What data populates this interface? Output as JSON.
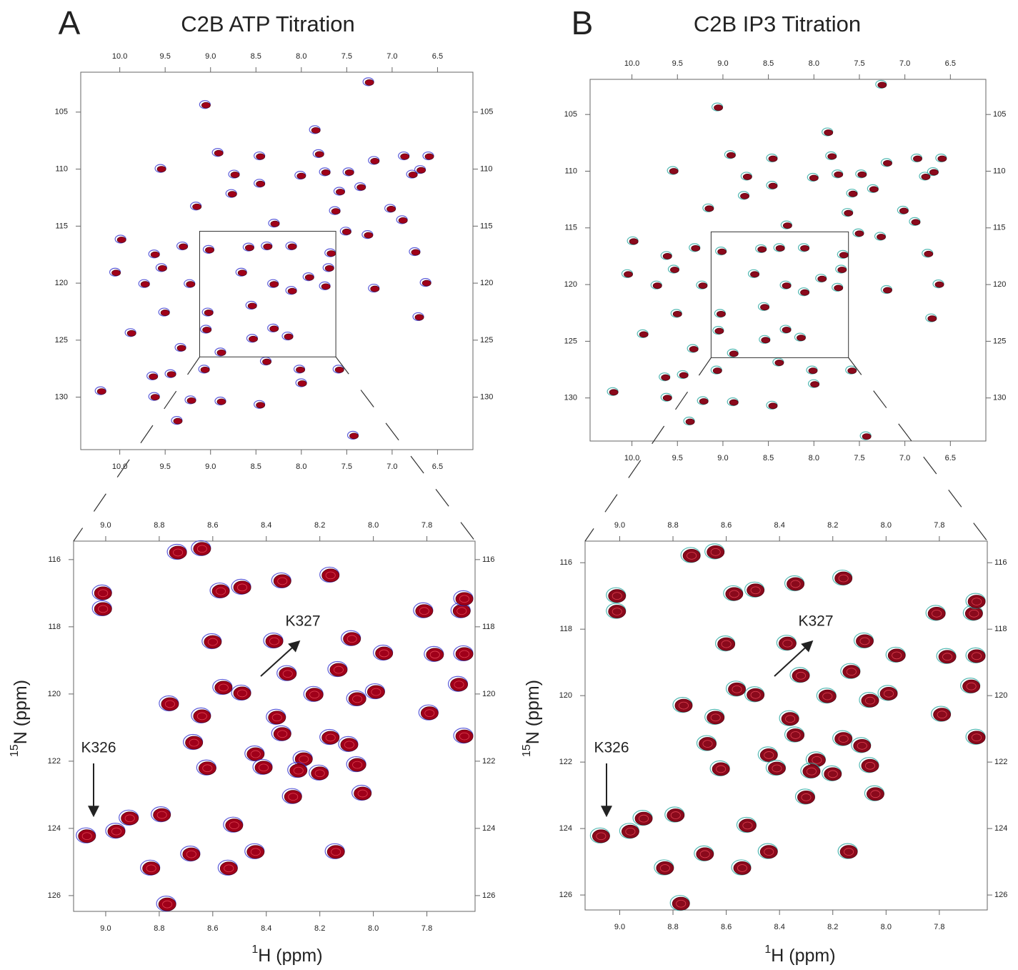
{
  "chart_data": [
    {
      "type": "scatter",
      "panel_label": "A",
      "title": "C2B ATP Titration",
      "x": [
        7.25,
        9.05,
        7.84,
        8.91,
        8.45,
        7.8,
        9.54,
        6.86,
        6.59,
        7.19,
        6.68,
        8.73,
        8.45,
        8.0,
        7.73,
        7.47,
        6.77,
        7.34,
        7.57,
        9.15,
        8.76,
        7.62,
        7.01,
        6.88,
        8.29,
        7.5,
        7.26,
        9.98,
        9.61,
        9.3,
        9.01,
        8.57,
        8.37,
        8.1,
        7.67,
        6.74,
        10.04,
        9.53,
        9.72,
        9.22,
        8.65,
        8.3,
        7.91,
        7.69,
        7.19,
        6.62,
        9.5,
        9.02,
        8.54,
        8.3,
        8.53,
        9.04,
        9.32,
        9.87,
        8.88,
        8.38,
        8.01,
        7.58,
        9.06,
        9.63,
        9.43,
        7.99,
        10.2,
        9.61,
        9.21,
        8.88,
        8.45,
        9.36,
        7.42,
        6.7,
        8.14,
        8.1,
        7.73
      ],
      "y": [
        102.4,
        104.4,
        106.6,
        108.6,
        108.9,
        108.7,
        110.0,
        108.9,
        108.9,
        109.3,
        110.1,
        110.5,
        111.3,
        110.6,
        110.3,
        110.3,
        110.5,
        111.6,
        112.0,
        113.3,
        112.2,
        113.7,
        113.5,
        114.5,
        114.8,
        115.5,
        115.8,
        116.2,
        117.5,
        116.8,
        117.1,
        116.9,
        116.8,
        116.8,
        117.4,
        117.3,
        119.1,
        118.7,
        120.1,
        120.1,
        119.1,
        120.1,
        119.5,
        118.7,
        120.5,
        120.0,
        122.6,
        122.6,
        122.0,
        124.0,
        124.9,
        124.1,
        125.7,
        124.4,
        126.1,
        126.9,
        127.6,
        127.6,
        127.6,
        128.2,
        128.0,
        128.8,
        129.5,
        130.0,
        130.3,
        130.4,
        130.7,
        132.1,
        133.4,
        123.0,
        124.7,
        120.7,
        120.3
      ],
      "xlim": [
        10.43,
        6.11
      ],
      "ylim": [
        101.5,
        134.6
      ],
      "xticks": [
        {
          "value": 10,
          "label": "10.0"
        },
        9.5,
        {
          "value": 9,
          "label": "9.0"
        },
        8.5,
        {
          "value": 8,
          "label": "8.0"
        },
        7.5,
        {
          "value": 7,
          "label": "7.0"
        },
        6.5
      ],
      "yticks": [
        105,
        110,
        115,
        120,
        125,
        130
      ],
      "color": "#a0001a",
      "edge_color": "#3535d0"
    },
    {
      "type": "scatter",
      "xlabel": {
        "sup": "1",
        "text": "H (ppm)"
      },
      "ylabel": {
        "sup": "15",
        "text": "N (ppm)"
      },
      "annotations": [
        "K326",
        "K327"
      ],
      "x": [
        8.73,
        8.64,
        9.01,
        9.01,
        8.57,
        8.49,
        8.34,
        8.16,
        7.81,
        7.67,
        7.66,
        8.6,
        8.37,
        8.08,
        7.96,
        7.77,
        7.66,
        8.13,
        8.32,
        8.56,
        8.49,
        8.76,
        8.64,
        8.36,
        8.22,
        8.06,
        7.99,
        7.68,
        7.79,
        8.34,
        8.67,
        8.16,
        8.09,
        7.66,
        8.44,
        8.26,
        8.62,
        8.41,
        8.28,
        8.2,
        8.06,
        9.07,
        8.96,
        8.91,
        8.79,
        8.52,
        8.68,
        8.83,
        8.54,
        8.44,
        8.14,
        8.77,
        8.04,
        8.3
      ],
      "y": [
        115.79,
        115.68,
        117.0,
        117.47,
        116.94,
        116.83,
        116.64,
        116.47,
        117.53,
        117.53,
        117.17,
        118.45,
        118.43,
        118.36,
        118.79,
        118.83,
        118.81,
        119.28,
        119.4,
        119.81,
        119.98,
        120.3,
        120.66,
        120.7,
        120.02,
        120.15,
        119.94,
        119.72,
        120.57,
        121.19,
        121.45,
        121.3,
        121.51,
        121.26,
        121.79,
        121.94,
        122.21,
        122.19,
        122.28,
        122.36,
        122.11,
        124.23,
        124.09,
        123.7,
        123.6,
        123.91,
        124.77,
        125.19,
        125.19,
        124.7,
        124.7,
        126.26,
        122.96,
        123.06
      ],
      "xlim": [
        9.12,
        7.62
      ],
      "ylim": [
        115.45,
        126.47
      ],
      "xticks": [
        {
          "value": 9,
          "label": "9.0"
        },
        8.8,
        8.6,
        8.4,
        8.2,
        {
          "value": 8,
          "label": "8.0"
        },
        7.8
      ],
      "yticks": [
        116,
        118,
        120,
        122,
        124,
        126
      ],
      "color": "#a0001a",
      "edge_color": "#3535d0"
    },
    {
      "type": "scatter",
      "panel_label": "B",
      "title": "C2B IP3 Titration",
      "x": [
        7.25,
        9.05,
        7.84,
        8.91,
        8.45,
        7.8,
        9.54,
        6.86,
        6.59,
        7.19,
        6.68,
        8.73,
        8.45,
        8.0,
        7.73,
        7.47,
        6.77,
        7.34,
        7.57,
        9.15,
        8.76,
        7.62,
        7.01,
        6.88,
        8.29,
        7.5,
        7.26,
        9.98,
        9.61,
        9.3,
        9.01,
        8.57,
        8.37,
        8.1,
        7.67,
        6.74,
        10.04,
        9.53,
        9.72,
        9.22,
        8.65,
        8.3,
        7.91,
        7.69,
        7.19,
        6.62,
        9.5,
        9.02,
        8.54,
        8.3,
        8.53,
        9.04,
        9.32,
        9.87,
        8.88,
        8.38,
        8.01,
        7.58,
        9.06,
        9.63,
        9.43,
        7.99,
        10.2,
        9.61,
        9.21,
        8.88,
        8.45,
        9.36,
        7.42,
        6.7,
        8.14,
        8.1,
        7.73
      ],
      "y": [
        102.4,
        104.4,
        106.6,
        108.6,
        108.9,
        108.7,
        110.0,
        108.9,
        108.9,
        109.3,
        110.1,
        110.5,
        111.3,
        110.6,
        110.3,
        110.3,
        110.5,
        111.6,
        112.0,
        113.3,
        112.2,
        113.7,
        113.5,
        114.5,
        114.8,
        115.5,
        115.8,
        116.2,
        117.5,
        116.8,
        117.1,
        116.9,
        116.8,
        116.8,
        117.4,
        117.3,
        119.1,
        118.7,
        120.1,
        120.1,
        119.1,
        120.1,
        119.5,
        118.7,
        120.5,
        120.0,
        122.6,
        122.6,
        122.0,
        124.0,
        124.9,
        124.1,
        125.7,
        124.4,
        126.1,
        126.9,
        127.6,
        127.6,
        127.6,
        128.2,
        128.0,
        128.8,
        129.5,
        130.0,
        130.3,
        130.4,
        130.7,
        132.1,
        133.4,
        123.0,
        124.7,
        120.7,
        120.3
      ],
      "xlim": [
        10.46,
        6.11
      ],
      "ylim": [
        101.9,
        133.8
      ],
      "xticks": [
        {
          "value": 10,
          "label": "10.0"
        },
        9.5,
        {
          "value": 9,
          "label": "9.0"
        },
        8.5,
        {
          "value": 8,
          "label": "8.0"
        },
        7.5,
        {
          "value": 7,
          "label": "7.0"
        },
        6.5
      ],
      "yticks": [
        105,
        110,
        115,
        120,
        125,
        130
      ],
      "color": "#8a0a1c",
      "edge_color": "#2aa8a0"
    },
    {
      "type": "scatter",
      "xlabel": {
        "sup": "1",
        "text": "H (ppm)"
      },
      "ylabel": {
        "sup": "15",
        "text": "N (ppm)"
      },
      "annotations": [
        "K326",
        "K327"
      ],
      "x": [
        8.73,
        8.64,
        9.01,
        9.01,
        8.57,
        8.49,
        8.34,
        8.16,
        7.81,
        7.67,
        7.66,
        8.6,
        8.37,
        8.08,
        7.96,
        7.77,
        7.66,
        8.13,
        8.32,
        8.56,
        8.49,
        8.76,
        8.64,
        8.36,
        8.22,
        8.06,
        7.99,
        7.68,
        7.79,
        8.34,
        8.67,
        8.16,
        8.09,
        7.66,
        8.44,
        8.26,
        8.62,
        8.41,
        8.28,
        8.2,
        8.06,
        9.07,
        8.96,
        8.91,
        8.79,
        8.52,
        8.68,
        8.83,
        8.54,
        8.44,
        8.14,
        8.77,
        8.04,
        8.3
      ],
      "y": [
        115.79,
        115.68,
        117.0,
        117.47,
        116.94,
        116.83,
        116.64,
        116.47,
        117.53,
        117.53,
        117.17,
        118.45,
        118.43,
        118.36,
        118.79,
        118.83,
        118.81,
        119.28,
        119.4,
        119.81,
        119.98,
        120.3,
        120.66,
        120.7,
        120.02,
        120.15,
        119.94,
        119.72,
        120.57,
        121.19,
        121.45,
        121.3,
        121.51,
        121.26,
        121.79,
        121.94,
        122.21,
        122.19,
        122.28,
        122.36,
        122.11,
        124.23,
        124.09,
        123.7,
        123.6,
        123.91,
        124.77,
        125.19,
        125.19,
        124.7,
        124.7,
        126.26,
        122.96,
        123.06
      ],
      "xlim": [
        9.13,
        7.62
      ],
      "ylim": [
        115.35,
        126.45
      ],
      "xticks": [
        {
          "value": 9,
          "label": "9.0"
        },
        8.8,
        8.6,
        8.4,
        8.2,
        {
          "value": 8,
          "label": "8.0"
        },
        7.8
      ],
      "yticks": [
        116,
        118,
        120,
        122,
        124,
        126
      ],
      "color": "#8a0a1c",
      "edge_color": "#2aa8a0"
    }
  ]
}
